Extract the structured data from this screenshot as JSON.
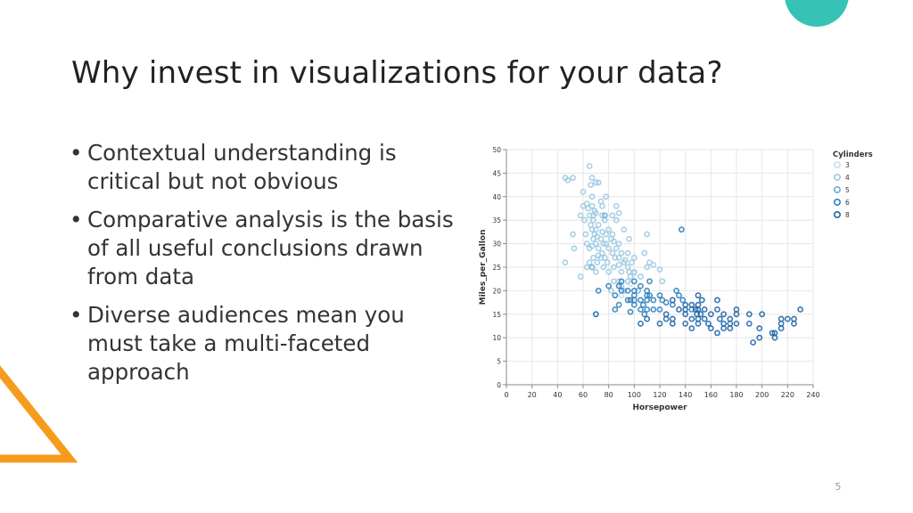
{
  "slide": {
    "title": "Why invest in visualizations for your data?",
    "bullet_glyph": "•",
    "bullets": [
      "Contextual understanding is critical but not obvious",
      "Comparative analysis is the basis of all useful conclusions drawn from data",
      "Diverse audiences mean you must take a multi-faceted approach"
    ],
    "page_number": "5"
  },
  "colors": {
    "accent_circle": "#36c2b4",
    "accent_triangle": "#f59c1c",
    "cyl3": "#c6dbef",
    "cyl4": "#9ecae1",
    "cyl5": "#6baed6",
    "cyl6": "#3182bd",
    "cyl8": "#1f66a8",
    "grid": "#e6e6e6",
    "axis": "#888888",
    "text": "#333333"
  },
  "chart_data": {
    "type": "scatter",
    "xlabel": "Horsepower",
    "ylabel": "Miles_per_Gallon",
    "xlim": [
      0,
      240
    ],
    "ylim": [
      0,
      50
    ],
    "xticks": [
      0,
      20,
      40,
      60,
      80,
      100,
      120,
      140,
      160,
      180,
      200,
      220,
      240
    ],
    "yticks": [
      0,
      5,
      10,
      15,
      20,
      25,
      30,
      35,
      40,
      45,
      50
    ],
    "grid": true,
    "legend": {
      "title": "Cylinders",
      "position": "top-right",
      "entries": [
        {
          "label": "3",
          "color": "#c6dbef"
        },
        {
          "label": "4",
          "color": "#9ecae1"
        },
        {
          "label": "5",
          "color": "#6baed6"
        },
        {
          "label": "6",
          "color": "#3182bd"
        },
        {
          "label": "8",
          "color": "#1f66a8"
        }
      ]
    },
    "series": [
      {
        "name": "3",
        "color": "#c6dbef",
        "points": [
          [
            90,
            19
          ],
          [
            97,
            21.5
          ],
          [
            100,
            23.7
          ],
          [
            110,
            18
          ]
        ]
      },
      {
        "name": "4",
        "color": "#9ecae1",
        "points": [
          [
            46,
            26
          ],
          [
            46,
            44
          ],
          [
            48,
            43.5
          ],
          [
            52,
            44
          ],
          [
            52,
            32
          ],
          [
            53,
            29
          ],
          [
            58,
            36
          ],
          [
            60,
            38
          ],
          [
            61,
            35
          ],
          [
            62,
            32
          ],
          [
            63,
            38.5
          ],
          [
            63,
            30
          ],
          [
            65,
            29
          ],
          [
            65,
            36
          ],
          [
            65,
            46.5
          ],
          [
            65,
            26
          ],
          [
            66,
            34
          ],
          [
            67,
            33
          ],
          [
            67,
            38
          ],
          [
            67,
            29.5
          ],
          [
            67,
            40
          ],
          [
            68,
            31
          ],
          [
            68,
            35
          ],
          [
            68,
            27
          ],
          [
            69,
            32
          ],
          [
            69,
            37
          ],
          [
            70,
            30
          ],
          [
            70,
            33
          ],
          [
            70,
            36.5
          ],
          [
            70,
            24
          ],
          [
            71,
            31.5
          ],
          [
            71,
            26
          ],
          [
            72,
            34
          ],
          [
            72,
            29
          ],
          [
            72,
            27.5
          ],
          [
            74,
            31
          ],
          [
            74,
            39
          ],
          [
            75,
            36
          ],
          [
            75,
            28
          ],
          [
            75,
            32.5
          ],
          [
            76,
            30
          ],
          [
            76,
            25
          ],
          [
            77,
            27
          ],
          [
            77,
            35
          ],
          [
            78,
            32
          ],
          [
            78,
            30
          ],
          [
            79,
            26
          ],
          [
            80,
            29
          ],
          [
            80,
            24
          ],
          [
            80,
            33
          ],
          [
            82,
            31
          ],
          [
            83,
            32
          ],
          [
            83,
            28
          ],
          [
            84,
            25
          ],
          [
            84,
            22
          ],
          [
            85,
            27
          ],
          [
            86,
            29
          ],
          [
            86,
            35
          ],
          [
            88,
            27
          ],
          [
            88,
            25.5
          ],
          [
            88,
            22
          ],
          [
            90,
            28
          ],
          [
            90,
            24
          ],
          [
            92,
            33
          ],
          [
            92,
            26
          ],
          [
            93,
            26.5
          ],
          [
            95,
            25
          ],
          [
            95,
            28
          ],
          [
            96,
            24
          ],
          [
            97,
            23
          ],
          [
            98,
            26
          ],
          [
            100,
            24
          ],
          [
            100,
            27
          ],
          [
            105,
            23
          ],
          [
            108,
            28
          ],
          [
            110,
            25
          ],
          [
            115,
            25.5
          ],
          [
            120,
            24.5
          ],
          [
            122,
            22
          ],
          [
            110,
            32
          ],
          [
            112,
            26
          ],
          [
            88,
            36.5
          ],
          [
            86,
            38
          ],
          [
            72,
            43
          ],
          [
            60,
            41
          ],
          [
            78,
            40
          ],
          [
            58,
            23
          ],
          [
            63,
            25
          ],
          [
            66,
            42.5
          ],
          [
            74,
            27
          ],
          [
            82,
            20
          ],
          [
            90,
            21
          ],
          [
            95,
            22
          ],
          [
            68,
            36
          ],
          [
            75,
            38
          ],
          [
            84,
            30.5
          ],
          [
            92,
            20
          ],
          [
            64,
            37.5
          ],
          [
            67,
            44
          ],
          [
            70,
            43
          ],
          [
            88,
            30
          ],
          [
            96,
            31
          ],
          [
            83,
            36
          ]
        ]
      },
      {
        "name": "5",
        "color": "#6baed6",
        "points": [
          [
            67,
            25
          ],
          [
            77,
            36
          ],
          [
            103,
            20
          ]
        ]
      },
      {
        "name": "6",
        "color": "#3182bd",
        "points": [
          [
            72,
            20
          ],
          [
            85,
            19
          ],
          [
            88,
            21
          ],
          [
            90,
            20
          ],
          [
            95,
            18
          ],
          [
            95,
            20
          ],
          [
            97,
            18
          ],
          [
            100,
            18
          ],
          [
            100,
            17
          ],
          [
            100,
            20
          ],
          [
            100,
            19
          ],
          [
            105,
            18
          ],
          [
            105,
            16
          ],
          [
            107,
            17
          ],
          [
            110,
            18
          ],
          [
            110,
            20
          ],
          [
            110,
            19
          ],
          [
            110,
            16
          ],
          [
            112,
            19
          ],
          [
            115,
            18
          ],
          [
            120,
            19
          ],
          [
            122,
            18
          ],
          [
            125,
            17.5
          ],
          [
            130,
            17
          ],
          [
            133,
            20
          ],
          [
            135,
            19
          ],
          [
            138,
            18
          ],
          [
            145,
            16
          ],
          [
            88,
            17
          ],
          [
            90,
            22
          ],
          [
            100,
            22
          ],
          [
            105,
            21
          ],
          [
            112,
            22
          ],
          [
            115,
            16
          ],
          [
            80,
            21
          ],
          [
            85,
            16
          ],
          [
            97,
            15.5
          ],
          [
            108,
            15
          ],
          [
            120,
            16
          ],
          [
            137,
            33
          ]
        ]
      },
      {
        "name": "8",
        "color": "#1f66a8",
        "points": [
          [
            70,
            15
          ],
          [
            105,
            13
          ],
          [
            110,
            14
          ],
          [
            120,
            13
          ],
          [
            125,
            15
          ],
          [
            130,
            14
          ],
          [
            130,
            18
          ],
          [
            135,
            16
          ],
          [
            140,
            16
          ],
          [
            140,
            13
          ],
          [
            140,
            15
          ],
          [
            145,
            14
          ],
          [
            145,
            12
          ],
          [
            145,
            17
          ],
          [
            148,
            16
          ],
          [
            149,
            15
          ],
          [
            150,
            13
          ],
          [
            150,
            14
          ],
          [
            150,
            17
          ],
          [
            150,
            16
          ],
          [
            152,
            15
          ],
          [
            155,
            14
          ],
          [
            160,
            15
          ],
          [
            160,
            12
          ],
          [
            165,
            16
          ],
          [
            165,
            18
          ],
          [
            167,
            14
          ],
          [
            170,
            15
          ],
          [
            170,
            13
          ],
          [
            175,
            14
          ],
          [
            175,
            13
          ],
          [
            180,
            13
          ],
          [
            180,
            16
          ],
          [
            190,
            15
          ],
          [
            190,
            13
          ],
          [
            193,
            9
          ],
          [
            198,
            10
          ],
          [
            200,
            15
          ],
          [
            208,
            11
          ],
          [
            210,
            11
          ],
          [
            210,
            10
          ],
          [
            215,
            14
          ],
          [
            215,
            12
          ],
          [
            220,
            14
          ],
          [
            225,
            13
          ],
          [
            225,
            14
          ],
          [
            230,
            16
          ],
          [
            170,
            12
          ],
          [
            158,
            13
          ],
          [
            153,
            18
          ],
          [
            165,
            11
          ],
          [
            175,
            12
          ],
          [
            180,
            15
          ],
          [
            198,
            12
          ],
          [
            215,
            13
          ],
          [
            150,
            19
          ],
          [
            140,
            17
          ],
          [
            155,
            16
          ],
          [
            130,
            13
          ],
          [
            125,
            14
          ]
        ]
      }
    ]
  }
}
